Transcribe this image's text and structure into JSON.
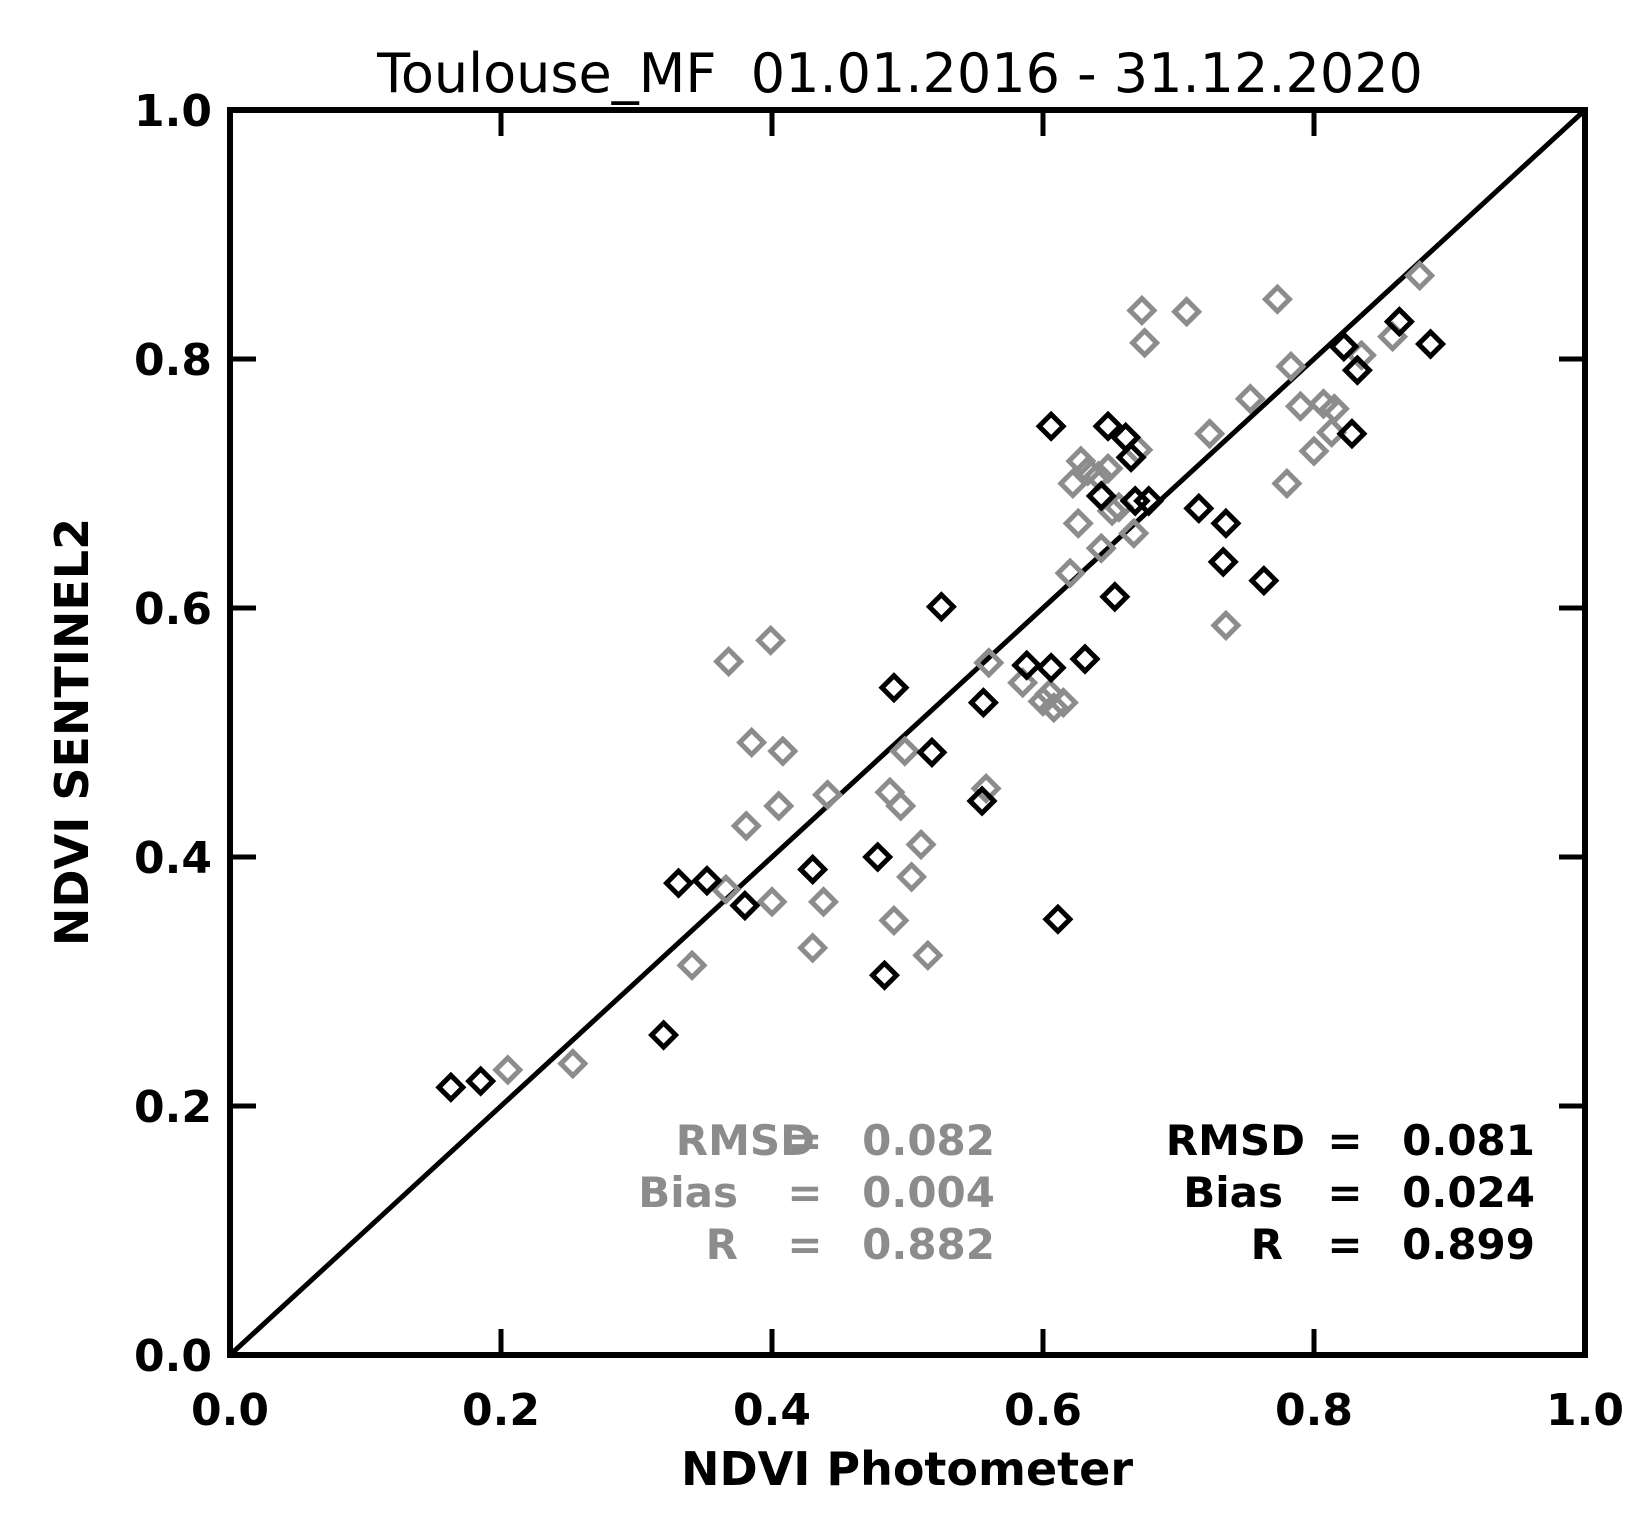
{
  "chart_data": {
    "type": "scatter",
    "title": "Toulouse_MF  01.01.2016 - 31.12.2020",
    "xlabel": "NDVI Photometer",
    "ylabel": "NDVI SENTINEL2",
    "xlim": [
      0.0,
      1.0
    ],
    "ylim": [
      0.0,
      1.0
    ],
    "xticks": [
      "0.0",
      "0.2",
      "0.4",
      "0.6",
      "0.8",
      "1.0"
    ],
    "yticks": [
      "0.0",
      "0.2",
      "0.4",
      "0.6",
      "0.8",
      "1.0"
    ],
    "grid": false,
    "reference_line": "1:1",
    "series": [
      {
        "color": "#8c8c8c",
        "marker": "diamond-open",
        "stats": {
          "rmsd": "0.082",
          "bias": "0.004",
          "r": "0.882"
        },
        "points": [
          [
            0.205,
            0.229
          ],
          [
            0.253,
            0.234
          ],
          [
            0.341,
            0.313
          ],
          [
            0.366,
            0.374
          ],
          [
            0.368,
            0.557
          ],
          [
            0.381,
            0.425
          ],
          [
            0.385,
            0.492
          ],
          [
            0.399,
            0.574
          ],
          [
            0.4,
            0.364
          ],
          [
            0.405,
            0.441
          ],
          [
            0.408,
            0.485
          ],
          [
            0.43,
            0.327
          ],
          [
            0.438,
            0.364
          ],
          [
            0.441,
            0.45
          ],
          [
            0.487,
            0.452
          ],
          [
            0.49,
            0.349
          ],
          [
            0.495,
            0.441
          ],
          [
            0.498,
            0.485
          ],
          [
            0.503,
            0.384
          ],
          [
            0.51,
            0.41
          ],
          [
            0.515,
            0.321
          ],
          [
            0.558,
            0.455
          ],
          [
            0.56,
            0.556
          ],
          [
            0.585,
            0.54
          ],
          [
            0.6,
            0.525
          ],
          [
            0.605,
            0.531
          ],
          [
            0.608,
            0.52
          ],
          [
            0.615,
            0.524
          ],
          [
            0.62,
            0.628
          ],
          [
            0.622,
            0.7
          ],
          [
            0.626,
            0.668
          ],
          [
            0.628,
            0.718
          ],
          [
            0.633,
            0.71
          ],
          [
            0.641,
            0.706
          ],
          [
            0.643,
            0.648
          ],
          [
            0.648,
            0.712
          ],
          [
            0.651,
            0.678
          ],
          [
            0.656,
            0.681
          ],
          [
            0.667,
            0.66
          ],
          [
            0.67,
            0.727
          ],
          [
            0.673,
            0.839
          ],
          [
            0.675,
            0.813
          ],
          [
            0.706,
            0.838
          ],
          [
            0.723,
            0.74
          ],
          [
            0.753,
            0.768
          ],
          [
            0.773,
            0.848
          ],
          [
            0.783,
            0.794
          ],
          [
            0.79,
            0.762
          ],
          [
            0.8,
            0.726
          ],
          [
            0.807,
            0.764
          ],
          [
            0.815,
            0.76
          ],
          [
            0.835,
            0.803
          ],
          [
            0.858,
            0.818
          ],
          [
            0.878,
            0.867
          ],
          [
            0.735,
            0.586
          ],
          [
            0.78,
            0.7
          ],
          [
            0.813,
            0.741
          ]
        ]
      },
      {
        "color": "#000000",
        "marker": "diamond-open",
        "stats": {
          "rmsd": "0.081",
          "bias": "0.024",
          "r": "0.899"
        },
        "points": [
          [
            0.163,
            0.215
          ],
          [
            0.185,
            0.22
          ],
          [
            0.32,
            0.257
          ],
          [
            0.331,
            0.379
          ],
          [
            0.352,
            0.381
          ],
          [
            0.38,
            0.361
          ],
          [
            0.43,
            0.39
          ],
          [
            0.478,
            0.4
          ],
          [
            0.483,
            0.305
          ],
          [
            0.49,
            0.536
          ],
          [
            0.518,
            0.484
          ],
          [
            0.525,
            0.601
          ],
          [
            0.555,
            0.445
          ],
          [
            0.556,
            0.524
          ],
          [
            0.588,
            0.554
          ],
          [
            0.606,
            0.552
          ],
          [
            0.606,
            0.746
          ],
          [
            0.611,
            0.35
          ],
          [
            0.631,
            0.559
          ],
          [
            0.643,
            0.69
          ],
          [
            0.648,
            0.746
          ],
          [
            0.653,
            0.609
          ],
          [
            0.661,
            0.737
          ],
          [
            0.665,
            0.721
          ],
          [
            0.668,
            0.686
          ],
          [
            0.678,
            0.686
          ],
          [
            0.715,
            0.68
          ],
          [
            0.733,
            0.637
          ],
          [
            0.735,
            0.668
          ],
          [
            0.763,
            0.622
          ],
          [
            0.822,
            0.81
          ],
          [
            0.828,
            0.74
          ],
          [
            0.832,
            0.791
          ],
          [
            0.863,
            0.83
          ],
          [
            0.886,
            0.812
          ]
        ]
      }
    ],
    "stats_labels": {
      "rmsd": "RMSD",
      "bias": "Bias",
      "r": "R",
      "eq": "="
    }
  }
}
